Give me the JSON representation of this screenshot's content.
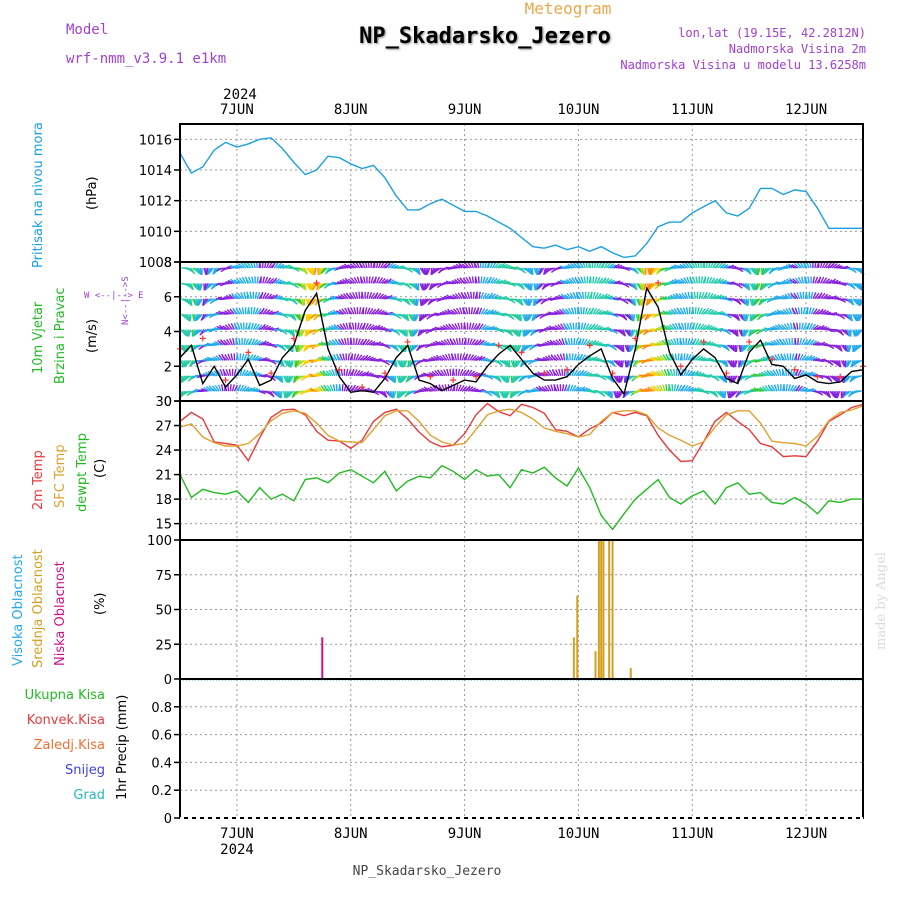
{
  "header": {
    "meteogram_label": "Meteogram",
    "station_title": "NP_Skadarsko_Jezero",
    "model_label": "Model",
    "model_name": "wrf-nmm_v3.9.1 e1km",
    "lonlat": "lon,lat (19.15E, 42.2812N)",
    "altitude": "Nadmorska Visina 2m",
    "model_altitude": "Nadmorska Visina u modelu 13.6258m",
    "footer_station": "NP_Skadarsko_Jezero",
    "watermark": "made by Angel"
  },
  "time_axis": {
    "year": "2024",
    "day_labels": [
      "7JUN",
      "8JUN",
      "9JUN",
      "10JUN",
      "11JUN",
      "12JUN"
    ]
  },
  "panels": {
    "pressure": {
      "label": "Pritisak na nivou mora",
      "unit": "(hPa)"
    },
    "wind": {
      "label_line1": "10m Vjetar",
      "label_line2": "Brzina i Pravac",
      "unit": "(m/s)",
      "compass": {
        "n": "N",
        "s": "S",
        "w": "W",
        "e": "E",
        "ns_line": "N<--|-->S",
        "we_line": "W <--|--> E"
      }
    },
    "temp": {
      "label_2m": "2m Temp",
      "label_sfc": "SFC Temp",
      "label_dewpt": "dewpt Temp",
      "unit": "(C)"
    },
    "cloud": {
      "label_high": "Visoka Oblacnost",
      "label_mid": "Srednja Oblacnost",
      "label_low": "Niska Oblacnost",
      "unit": "(%)"
    },
    "precip": {
      "label_total": "Ukupna Kisa",
      "label_conv": "Konvek.Kisa",
      "label_frozen": "Zaledj.Kisa",
      "label_snow": "Snijeg",
      "label_grad": "Grad",
      "unit_line": "1hr Precip (mm)"
    }
  },
  "colors": {
    "pressure": "#1a9fe0",
    "temp2m": "#e83a3a",
    "sfc": "#e0a030",
    "dewpt": "#22bb22",
    "cloud_high": "#22aaee",
    "cloud_mid": "#d4a020",
    "cloud_low": "#cc1188",
    "wind_speed": "#000000",
    "wind_gust": "#ff3333",
    "title_purple": "#a040d0",
    "meteogram_orange": "#e8a84a"
  },
  "chart_data": [
    {
      "type": "line",
      "title": "",
      "ylabel": "Pritisak na nivou mora (hPa)",
      "x_unit": "days since 6 JUN 2024 00Z",
      "xlim": [
        0.5,
        6.5
      ],
      "ylim": [
        1008,
        1017
      ],
      "yticks": [
        1008,
        1010,
        1012,
        1014,
        1016
      ],
      "grid": true,
      "series": [
        {
          "name": "Pritisak na nivou mora",
          "x": [
            0.5,
            0.6,
            0.7,
            0.8,
            0.9,
            1.0,
            1.1,
            1.2,
            1.3,
            1.4,
            1.5,
            1.6,
            1.7,
            1.8,
            1.9,
            2.0,
            2.1,
            2.2,
            2.3,
            2.4,
            2.5,
            2.6,
            2.7,
            2.8,
            2.9,
            3.0,
            3.1,
            3.2,
            3.3,
            3.4,
            3.5,
            3.6,
            3.7,
            3.8,
            3.9,
            4.0,
            4.1,
            4.2,
            4.3,
            4.4,
            4.5,
            4.6,
            4.7,
            4.8,
            4.9,
            5.0,
            5.1,
            5.2,
            5.3,
            5.4,
            5.5,
            5.6,
            5.7,
            5.8,
            5.9,
            6.0,
            6.1,
            6.2,
            6.3,
            6.4,
            6.5
          ],
          "values": [
            1015.1,
            1013.8,
            1014.2,
            1015.3,
            1015.8,
            1015.5,
            1015.7,
            1016.0,
            1016.1,
            1015.4,
            1014.5,
            1013.7,
            1014.0,
            1014.9,
            1014.8,
            1014.4,
            1014.1,
            1014.3,
            1013.5,
            1012.3,
            1011.4,
            1011.4,
            1011.8,
            1012.1,
            1011.7,
            1011.3,
            1011.3,
            1011.0,
            1010.6,
            1010.2,
            1009.6,
            1009.0,
            1008.9,
            1009.1,
            1008.8,
            1009.0,
            1008.7,
            1009.0,
            1008.6,
            1008.3,
            1008.4,
            1009.2,
            1010.3,
            1010.6,
            1010.6,
            1011.2,
            1011.6,
            1012.0,
            1011.2,
            1011.0,
            1011.5,
            1012.8,
            1012.8,
            1012.4,
            1012.7,
            1012.6,
            1011.5,
            1010.2,
            1010.2,
            1010.2,
            1010.2
          ]
        }
      ]
    },
    {
      "type": "line",
      "title": "",
      "ylabel": "10m Vjetar Brzina i Pravac (m/s)",
      "x_unit": "days since 6 JUN 2024 00Z",
      "xlim": [
        0.5,
        6.5
      ],
      "ylim": [
        0,
        8
      ],
      "yticks": [
        0,
        2,
        4,
        6,
        8
      ],
      "grid": true,
      "series": [
        {
          "name": "10m Vjetar Brzina",
          "x": [
            0.5,
            0.6,
            0.7,
            0.8,
            0.9,
            1.0,
            1.1,
            1.2,
            1.3,
            1.4,
            1.5,
            1.6,
            1.7,
            1.8,
            1.9,
            2.0,
            2.1,
            2.2,
            2.3,
            2.4,
            2.5,
            2.6,
            2.7,
            2.8,
            2.9,
            3.0,
            3.1,
            3.2,
            3.3,
            3.4,
            3.5,
            3.6,
            3.7,
            3.8,
            3.9,
            4.0,
            4.1,
            4.2,
            4.3,
            4.4,
            4.5,
            4.6,
            4.7,
            4.8,
            4.9,
            5.0,
            5.1,
            5.2,
            5.3,
            5.4,
            5.5,
            5.6,
            5.7,
            5.8,
            5.9,
            6.0,
            6.1,
            6.2,
            6.3,
            6.4,
            6.5
          ],
          "values": [
            2.5,
            3.2,
            1.0,
            2.0,
            0.8,
            1.5,
            2.4,
            0.9,
            1.2,
            2.5,
            3.2,
            5.2,
            6.2,
            3.0,
            1.4,
            0.5,
            0.6,
            0.5,
            1.3,
            2.5,
            3.2,
            1.2,
            1.0,
            0.6,
            0.9,
            1.2,
            1.1,
            2.0,
            2.7,
            3.2,
            2.4,
            1.6,
            1.2,
            1.2,
            1.4,
            2.1,
            2.6,
            3.0,
            1.3,
            0.4,
            3.0,
            6.5,
            5.4,
            2.8,
            1.5,
            2.4,
            3.0,
            2.5,
            1.3,
            1.0,
            2.8,
            3.5,
            2.1,
            2.0,
            1.3,
            1.5,
            1.1,
            1.0,
            1.1,
            1.7,
            1.8
          ]
        },
        {
          "name": "10m Vjetar Udari",
          "x": [
            0.5,
            0.7,
            0.9,
            1.1,
            1.3,
            1.5,
            1.7,
            1.9,
            2.1,
            2.3,
            2.5,
            2.7,
            2.9,
            3.1,
            3.3,
            3.5,
            3.7,
            3.9,
            4.1,
            4.3,
            4.5,
            4.7,
            4.9,
            5.1,
            5.3,
            5.5,
            5.7,
            5.9,
            6.1,
            6.3,
            6.5
          ],
          "values": [
            3.0,
            3.6,
            1.2,
            2.8,
            1.6,
            3.6,
            6.8,
            1.8,
            0.8,
            1.6,
            3.4,
            1.4,
            1.2,
            1.4,
            3.2,
            2.8,
            1.6,
            1.8,
            3.2,
            1.6,
            3.6,
            6.8,
            2.0,
            3.4,
            1.6,
            3.4,
            2.4,
            1.8,
            1.4,
            1.4,
            2.0
          ]
        }
      ],
      "wind_barbs": "10m wind direction arrows every hour, colored by speed"
    },
    {
      "type": "line",
      "title": "",
      "ylabel": "Temperature (C)",
      "x_unit": "days since 6 JUN 2024 00Z",
      "xlim": [
        0.5,
        6.5
      ],
      "ylim": [
        13,
        30
      ],
      "yticks": [
        15,
        18,
        21,
        24,
        27,
        30
      ],
      "grid": true,
      "series": [
        {
          "name": "2m Temp",
          "x": [
            0.5,
            0.6,
            0.7,
            0.8,
            0.9,
            1.0,
            1.1,
            1.2,
            1.3,
            1.4,
            1.5,
            1.6,
            1.7,
            1.8,
            1.9,
            2.0,
            2.1,
            2.2,
            2.3,
            2.4,
            2.5,
            2.6,
            2.7,
            2.8,
            2.9,
            3.0,
            3.1,
            3.2,
            3.3,
            3.4,
            3.5,
            3.6,
            3.7,
            3.8,
            3.9,
            4.0,
            4.1,
            4.2,
            4.3,
            4.4,
            4.5,
            4.6,
            4.7,
            4.8,
            4.9,
            5.0,
            5.1,
            5.2,
            5.3,
            5.4,
            5.5,
            5.6,
            5.7,
            5.8,
            5.9,
            6.0,
            6.1,
            6.2,
            6.3,
            6.4,
            6.5
          ],
          "values": [
            27.5,
            28.6,
            27.8,
            25.0,
            24.8,
            24.6,
            22.7,
            25.5,
            28.0,
            28.9,
            29.0,
            28.3,
            26.3,
            25.2,
            25.1,
            24.2,
            25.2,
            27.5,
            28.6,
            29.0,
            27.8,
            26.2,
            25.0,
            24.4,
            24.6,
            26.0,
            28.3,
            29.7,
            28.7,
            28.2,
            29.6,
            29.2,
            28.5,
            26.5,
            26.3,
            25.6,
            26.6,
            27.3,
            28.6,
            28.2,
            28.6,
            28.2,
            25.8,
            24.0,
            22.6,
            22.7,
            25.0,
            27.5,
            28.6,
            27.5,
            26.5,
            24.8,
            24.4,
            23.2,
            23.3,
            23.2,
            25.1,
            27.5,
            28.3,
            29.2,
            29.6
          ]
        },
        {
          "name": "SFC Temp",
          "x": [
            0.5,
            0.6,
            0.7,
            0.8,
            0.9,
            1.0,
            1.1,
            1.2,
            1.3,
            1.4,
            1.5,
            1.6,
            1.7,
            1.8,
            1.9,
            2.0,
            2.1,
            2.2,
            2.3,
            2.4,
            2.5,
            2.6,
            2.7,
            2.8,
            2.9,
            3.0,
            3.1,
            3.2,
            3.3,
            3.4,
            3.5,
            3.6,
            3.7,
            3.8,
            3.9,
            4.0,
            4.1,
            4.2,
            4.3,
            4.4,
            4.5,
            4.6,
            4.7,
            4.8,
            4.9,
            5.0,
            5.1,
            5.2,
            5.3,
            5.4,
            5.5,
            5.6,
            5.7,
            5.8,
            5.9,
            6.0,
            6.1,
            6.2,
            6.3,
            6.4,
            6.5
          ],
          "values": [
            26.8,
            27.2,
            25.6,
            24.9,
            24.5,
            24.5,
            24.8,
            26.0,
            27.6,
            28.5,
            28.8,
            28.5,
            27.3,
            25.8,
            25.1,
            25.0,
            24.9,
            26.5,
            28.2,
            28.8,
            28.8,
            27.5,
            25.8,
            25.0,
            24.6,
            24.8,
            26.5,
            28.3,
            28.8,
            29.0,
            28.6,
            27.8,
            26.7,
            26.3,
            26.0,
            25.6,
            25.9,
            27.5,
            28.6,
            28.8,
            28.8,
            28.3,
            26.7,
            25.8,
            25.2,
            24.5,
            25.0,
            26.8,
            28.3,
            28.8,
            28.8,
            27.3,
            25.1,
            24.9,
            24.8,
            24.5,
            25.7,
            27.6,
            28.6,
            28.9,
            29.4
          ]
        },
        {
          "name": "dewpt Temp",
          "x": [
            0.5,
            0.6,
            0.7,
            0.8,
            0.9,
            1.0,
            1.1,
            1.2,
            1.3,
            1.4,
            1.5,
            1.6,
            1.7,
            1.8,
            1.9,
            2.0,
            2.1,
            2.2,
            2.3,
            2.4,
            2.5,
            2.6,
            2.7,
            2.8,
            2.9,
            3.0,
            3.1,
            3.2,
            3.3,
            3.4,
            3.5,
            3.6,
            3.7,
            3.8,
            3.9,
            4.0,
            4.1,
            4.2,
            4.3,
            4.4,
            4.5,
            4.6,
            4.7,
            4.8,
            4.9,
            5.0,
            5.1,
            5.2,
            5.3,
            5.4,
            5.5,
            5.6,
            5.7,
            5.8,
            5.9,
            6.0,
            6.1,
            6.2,
            6.3,
            6.4,
            6.5
          ],
          "values": [
            21.0,
            18.2,
            19.2,
            18.8,
            18.6,
            19.0,
            17.6,
            19.4,
            18.0,
            18.6,
            17.8,
            20.4,
            20.6,
            20.0,
            21.2,
            21.6,
            20.8,
            20.0,
            21.4,
            19.0,
            20.2,
            20.8,
            20.6,
            22.1,
            21.4,
            20.4,
            21.6,
            20.8,
            21.0,
            19.4,
            21.6,
            21.2,
            21.9,
            20.6,
            19.6,
            21.8,
            19.4,
            16.0,
            14.3,
            16.2,
            18.0,
            19.2,
            20.4,
            18.2,
            17.4,
            18.4,
            19.0,
            17.4,
            19.4,
            20.0,
            18.6,
            18.8,
            17.6,
            17.4,
            18.2,
            17.4,
            16.2,
            17.8,
            17.6,
            18.0,
            18.0
          ]
        }
      ]
    },
    {
      "type": "bar",
      "title": "",
      "ylabel": "Oblacnost (%)",
      "x_unit": "days since 6 JUN 2024 00Z",
      "xlim": [
        0.5,
        6.5
      ],
      "ylim": [
        0,
        100
      ],
      "yticks": [
        0,
        25,
        50,
        75,
        100
      ],
      "grid": true,
      "series": [
        {
          "name": "Visoka Oblacnost",
          "x": [],
          "values": []
        },
        {
          "name": "Srednja Oblacnost",
          "x": [
            3.96,
            3.99,
            4.15,
            4.18,
            4.2,
            4.22,
            4.27,
            4.3,
            4.46
          ],
          "values": [
            30,
            60,
            20,
            100,
            100,
            100,
            100,
            100,
            8
          ]
        },
        {
          "name": "Niska Oblacnost",
          "x": [
            1.75
          ],
          "values": [
            30
          ]
        }
      ]
    },
    {
      "type": "bar",
      "title": "",
      "ylabel": "1hr Precip (mm)",
      "x_unit": "days since 6 JUN 2024 00Z",
      "xlim": [
        0.5,
        6.5
      ],
      "ylim": [
        0,
        1
      ],
      "yticks": [
        0,
        0.2,
        0.4,
        0.6,
        0.8
      ],
      "grid": true,
      "series": [
        {
          "name": "Ukupna Kisa",
          "x": [],
          "values": []
        },
        {
          "name": "Konvek.Kisa",
          "x": [],
          "values": []
        },
        {
          "name": "Zaledj.Kisa",
          "x": [],
          "values": []
        },
        {
          "name": "Snijeg",
          "x": [],
          "values": []
        },
        {
          "name": "Grad",
          "x": [],
          "values": []
        }
      ]
    }
  ]
}
